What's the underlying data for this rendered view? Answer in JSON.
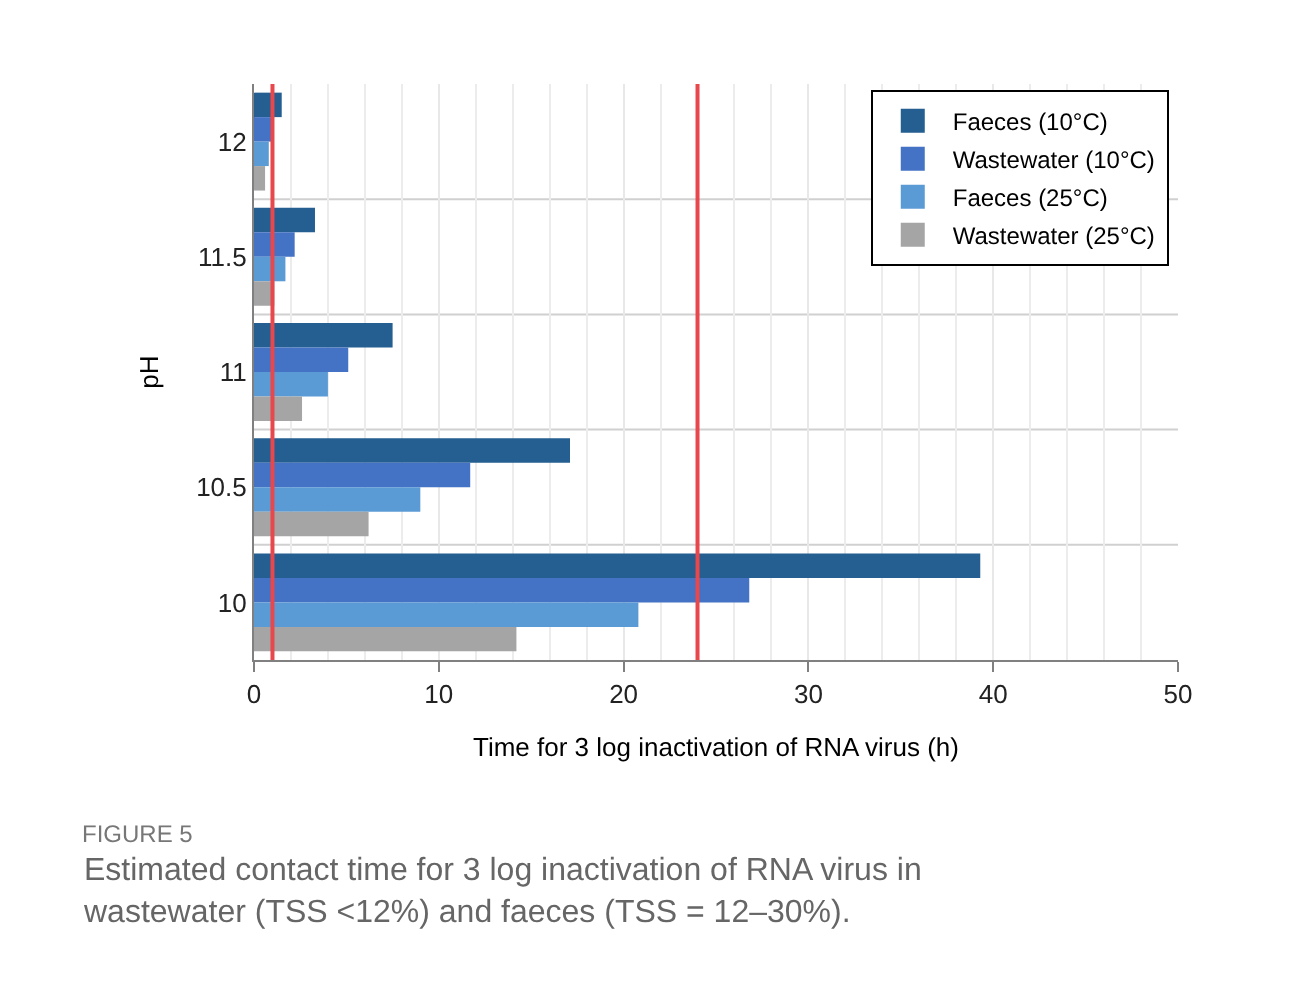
{
  "chart_data": {
    "type": "bar",
    "orientation": "horizontal",
    "categories": [
      "12",
      "11.5",
      "11",
      "10.5",
      "10"
    ],
    "series": [
      {
        "name": "Faeces (10°C)",
        "color": "#255e91",
        "values": [
          1.5,
          3.3,
          7.5,
          17.1,
          39.3
        ]
      },
      {
        "name": "Wastewater (10°C)",
        "color": "#4472c4",
        "values": [
          1.0,
          2.2,
          5.1,
          11.7,
          26.8
        ]
      },
      {
        "name": "Faeces (25°C)",
        "color": "#5b9bd5",
        "values": [
          0.8,
          1.7,
          4.0,
          9.0,
          20.8
        ]
      },
      {
        "name": "Wastewater (25°C)",
        "color": "#a5a5a5",
        "values": [
          0.6,
          1.1,
          2.6,
          6.2,
          14.2
        ]
      }
    ],
    "xlim": [
      0,
      50
    ],
    "xticks": [
      0,
      10,
      20,
      30,
      40,
      50
    ],
    "xlabel": "Time for 3 log inactivation of RNA virus (h)",
    "ylabel": "pH",
    "ref_lines": [
      {
        "axis": "x",
        "value": 1,
        "color": "#e8474c"
      },
      {
        "axis": "x",
        "value": 24,
        "color": "#e8474c"
      }
    ],
    "grid": true,
    "legend": "top right",
    "annotations": [
      "FIGURE 5",
      "Estimated contact time for 3 log inactivation of RNA virus in\nwastewater (TSS <12%) and faeces (TSS = 12–30%)."
    ]
  }
}
